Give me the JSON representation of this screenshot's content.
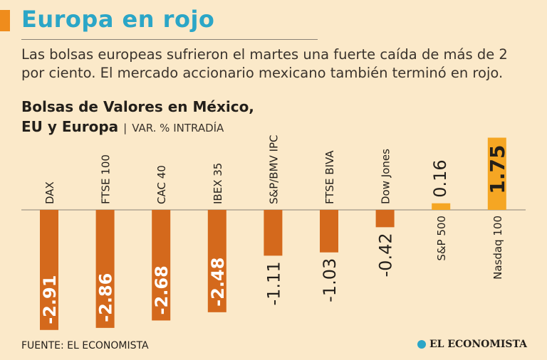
{
  "header": {
    "title": "Europa en rojo",
    "subtitle": "Las bolsas europeas sufrieron el martes una fuerte caída de más de 2 por ciento. El mercado accionario mexicano también terminó en rojo."
  },
  "chart_header": {
    "title_line1": "Bolsas de Valores en México,",
    "title_line2": "EU y Europa",
    "separator": "|",
    "unit": "VAR. % INTRADÍA"
  },
  "chart_data": {
    "type": "bar",
    "title": "Bolsas de Valores en México, EU y Europa",
    "ylabel": "VAR. % INTRADÍA",
    "categories": [
      "DAX",
      "FTSE 100",
      "CAC 40",
      "IBEX 35",
      "S&P/BMV IPC",
      "FTSE BIVA",
      "Dow Jones",
      "S&P 500",
      "Nasdaq 100"
    ],
    "values": [
      -2.91,
      -2.86,
      -2.68,
      -2.48,
      -1.11,
      -1.03,
      -0.42,
      0.16,
      1.75
    ],
    "value_labels": [
      "-2.91",
      "-2.86",
      "-2.68",
      "-2.48",
      "-1.11",
      "-1.03",
      "-0.42",
      "0.16",
      "1.75"
    ],
    "colors": {
      "negative": "#d4691c",
      "positive": "#f5a623",
      "baseline": "#8a8276",
      "text": "#231f1a"
    }
  },
  "footer": {
    "source": "FUENTE: EL ECONOMISTA",
    "brand": "EL ECONOMISTA"
  }
}
